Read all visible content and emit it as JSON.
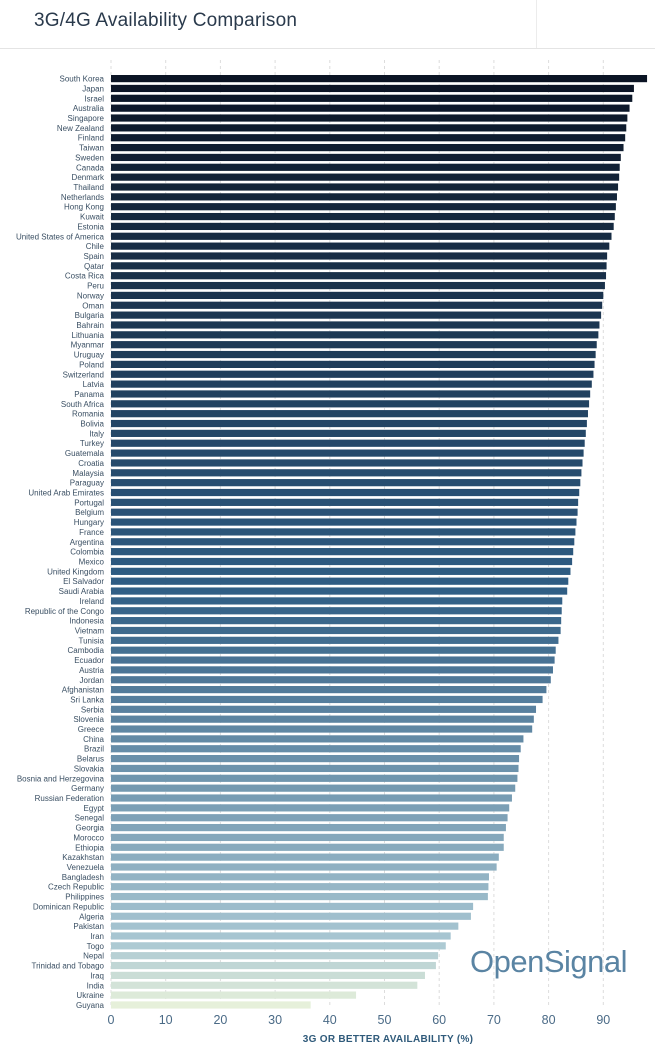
{
  "title": "3G/4G Availability Comparison",
  "brand": "OpenSignal",
  "chart_data": {
    "type": "bar",
    "orientation": "horizontal",
    "title": "3G/4G Availability Comparison",
    "xlabel": "3G OR BETTER AVAILABILITY (%)",
    "ylabel": "",
    "xlim": [
      0,
      98
    ],
    "xticks": [
      0,
      10,
      20,
      30,
      40,
      50,
      60,
      70,
      80,
      90
    ],
    "grid": "vertical-dashed",
    "color_scale": [
      "#0b1424",
      "#2f5d84",
      "#a8c6d2",
      "#e6f0da"
    ],
    "categories": [
      "South Korea",
      "Japan",
      "Israel",
      "Australia",
      "Singapore",
      "New Zealand",
      "Finland",
      "Taiwan",
      "Sweden",
      "Canada",
      "Denmark",
      "Thailand",
      "Netherlands",
      "Hong Kong",
      "Kuwait",
      "Estonia",
      "United States of America",
      "Chile",
      "Spain",
      "Qatar",
      "Costa Rica",
      "Peru",
      "Norway",
      "Oman",
      "Bulgaria",
      "Bahrain",
      "Lithuania",
      "Myanmar",
      "Uruguay",
      "Poland",
      "Switzerland",
      "Latvia",
      "Panama",
      "South Africa",
      "Romania",
      "Bolivia",
      "Italy",
      "Turkey",
      "Guatemala",
      "Croatia",
      "Malaysia",
      "Paraguay",
      "United Arab Emirates",
      "Portugal",
      "Belgium",
      "Hungary",
      "France",
      "Argentina",
      "Colombia",
      "Mexico",
      "United Kingdom",
      "El Salvador",
      "Saudi Arabia",
      "Ireland",
      "Republic of the Congo",
      "Indonesia",
      "Vietnam",
      "Tunisia",
      "Cambodia",
      "Ecuador",
      "Austria",
      "Jordan",
      "Afghanistan",
      "Sri Lanka",
      "Serbia",
      "Slovenia",
      "Greece",
      "China",
      "Brazil",
      "Belarus",
      "Slovakia",
      "Bosnia and Herzegovina",
      "Germany",
      "Russian Federation",
      "Egypt",
      "Senegal",
      "Georgia",
      "Morocco",
      "Ethiopia",
      "Kazakhstan",
      "Venezuela",
      "Bangladesh",
      "Czech Republic",
      "Philippines",
      "Dominican Republic",
      "Algeria",
      "Pakistan",
      "Iran",
      "Togo",
      "Nepal",
      "Trinidad and Tobago",
      "Iraq",
      "India",
      "Ukraine",
      "Guyana"
    ],
    "values": [
      98.8,
      95.6,
      95.3,
      94.8,
      94.4,
      94.2,
      94.0,
      93.7,
      93.2,
      93.0,
      92.9,
      92.7,
      92.5,
      92.3,
      92.1,
      91.9,
      91.5,
      91.1,
      90.7,
      90.6,
      90.5,
      90.3,
      90.0,
      89.8,
      89.6,
      89.3,
      89.1,
      88.8,
      88.6,
      88.4,
      88.2,
      87.9,
      87.6,
      87.4,
      87.2,
      87.0,
      86.8,
      86.6,
      86.4,
      86.2,
      86.0,
      85.8,
      85.6,
      85.4,
      85.3,
      85.1,
      84.9,
      84.7,
      84.5,
      84.3,
      84.0,
      83.6,
      83.4,
      82.5,
      82.4,
      82.3,
      82.2,
      81.8,
      81.3,
      81.1,
      80.8,
      80.4,
      79.6,
      78.9,
      77.7,
      77.3,
      77.0,
      75.4,
      74.9,
      74.6,
      74.5,
      74.3,
      73.9,
      73.3,
      72.8,
      72.5,
      72.2,
      71.8,
      71.8,
      70.9,
      70.5,
      69.1,
      69.0,
      68.9,
      66.2,
      65.8,
      63.5,
      62.1,
      61.2,
      59.8,
      59.4,
      57.4,
      56.0,
      44.8,
      36.5
    ]
  }
}
